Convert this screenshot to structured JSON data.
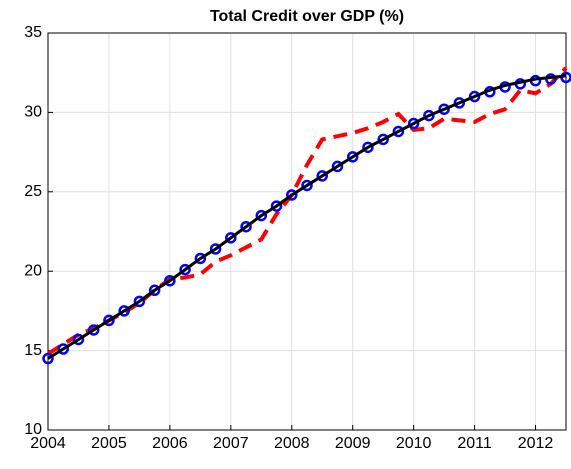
{
  "chart_data": {
    "type": "line",
    "title": "Total Credit over GDP (%)",
    "x": [
      2004,
      2004.25,
      2004.5,
      2004.75,
      2005,
      2005.25,
      2005.5,
      2005.75,
      2006,
      2006.25,
      2006.5,
      2006.75,
      2007,
      2007.25,
      2007.5,
      2007.75,
      2008,
      2008.25,
      2008.5,
      2008.75,
      2009,
      2009.25,
      2009.5,
      2009.75,
      2010,
      2010.25,
      2010.5,
      2010.75,
      2011,
      2011.25,
      2011.5,
      2011.75,
      2012,
      2012.25,
      2012.5
    ],
    "series": [
      {
        "color": "#ff0000",
        "style": "dashed",
        "values": [
          14.8,
          15.4,
          16.0,
          16.4,
          16.9,
          17.4,
          18.0,
          18.8,
          19.5,
          19.6,
          19.8,
          20.6,
          21.0,
          21.5,
          22.0,
          23.6,
          24.8,
          26.7,
          28.3,
          28.5,
          28.7,
          29.0,
          29.4,
          29.9,
          28.9,
          29.0,
          29.6,
          29.5,
          29.4,
          29.9,
          30.2,
          31.4,
          31.2,
          31.8,
          32.8
        ]
      },
      {
        "color": "#0000ff",
        "style": "circles",
        "values": [
          14.5,
          15.1,
          15.7,
          16.3,
          16.9,
          17.5,
          18.1,
          18.8,
          19.4,
          20.1,
          20.8,
          21.4,
          22.1,
          22.8,
          23.5,
          24.1,
          24.8,
          25.4,
          26.0,
          26.6,
          27.2,
          27.8,
          28.3,
          28.8,
          29.3,
          29.8,
          30.2,
          30.6,
          31.0,
          31.3,
          31.6,
          31.8,
          32.0,
          32.1,
          32.2
        ]
      },
      {
        "color": "#000000",
        "style": "solid",
        "values": [
          14.5,
          15.1,
          15.7,
          16.3,
          16.9,
          17.5,
          18.1,
          18.8,
          19.4,
          20.1,
          20.8,
          21.4,
          22.1,
          22.8,
          23.5,
          24.1,
          24.8,
          25.4,
          26.0,
          26.6,
          27.2,
          27.8,
          28.3,
          28.8,
          29.3,
          29.8,
          30.2,
          30.6,
          31.0,
          31.4,
          31.7,
          31.9,
          32.1,
          32.2,
          32.3
        ]
      }
    ],
    "xlim": [
      2004,
      2012.5
    ],
    "xticks": [
      2004,
      2005,
      2006,
      2007,
      2008,
      2009,
      2010,
      2011,
      2012
    ],
    "ylim": [
      10,
      35
    ],
    "yticks": [
      10,
      15,
      20,
      25,
      30,
      35
    ],
    "grid": true
  }
}
